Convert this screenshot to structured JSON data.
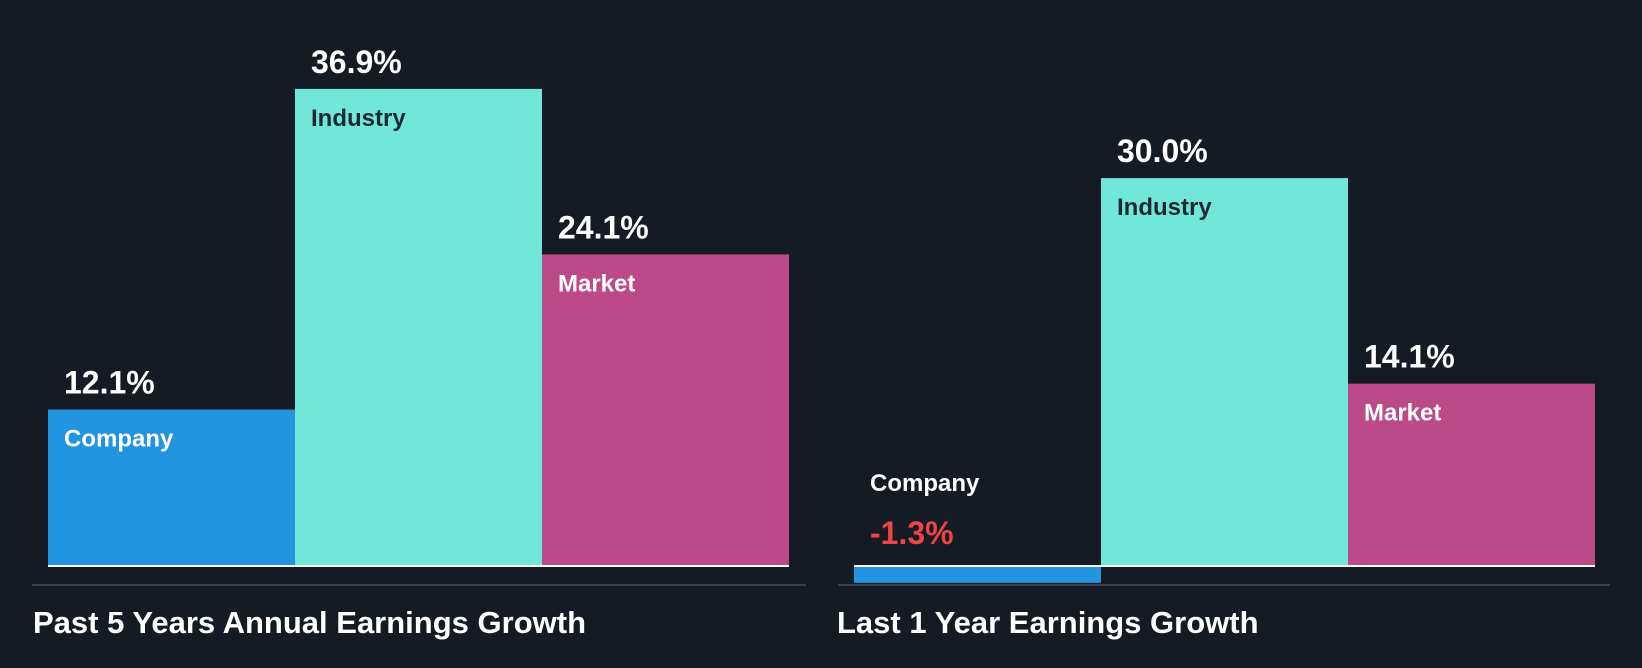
{
  "colors": {
    "background": "#151b24",
    "company": "#2394e0",
    "industry": "#71e8d7",
    "market": "#bb4a86",
    "negative_value": "#ee4444",
    "value_text": "#ffffff",
    "axis_line": "#ffffff",
    "bottom_rule": "#3a4048"
  },
  "chart_data": [
    {
      "type": "bar",
      "title": "Past 5 Years Annual Earnings Growth",
      "categories": [
        "Company",
        "Industry",
        "Market"
      ],
      "values": [
        12.1,
        36.9,
        24.1
      ],
      "value_labels": [
        "12.1%",
        "36.9%",
        "24.1%"
      ],
      "unit": "%",
      "legend": "none",
      "grid": false
    },
    {
      "type": "bar",
      "title": "Last 1 Year Earnings Growth",
      "categories": [
        "Company",
        "Industry",
        "Market"
      ],
      "values": [
        -1.3,
        30.0,
        14.1
      ],
      "value_labels": [
        "-1.3%",
        "30.0%",
        "14.1%"
      ],
      "unit": "%",
      "legend": "none",
      "grid": false
    }
  ]
}
